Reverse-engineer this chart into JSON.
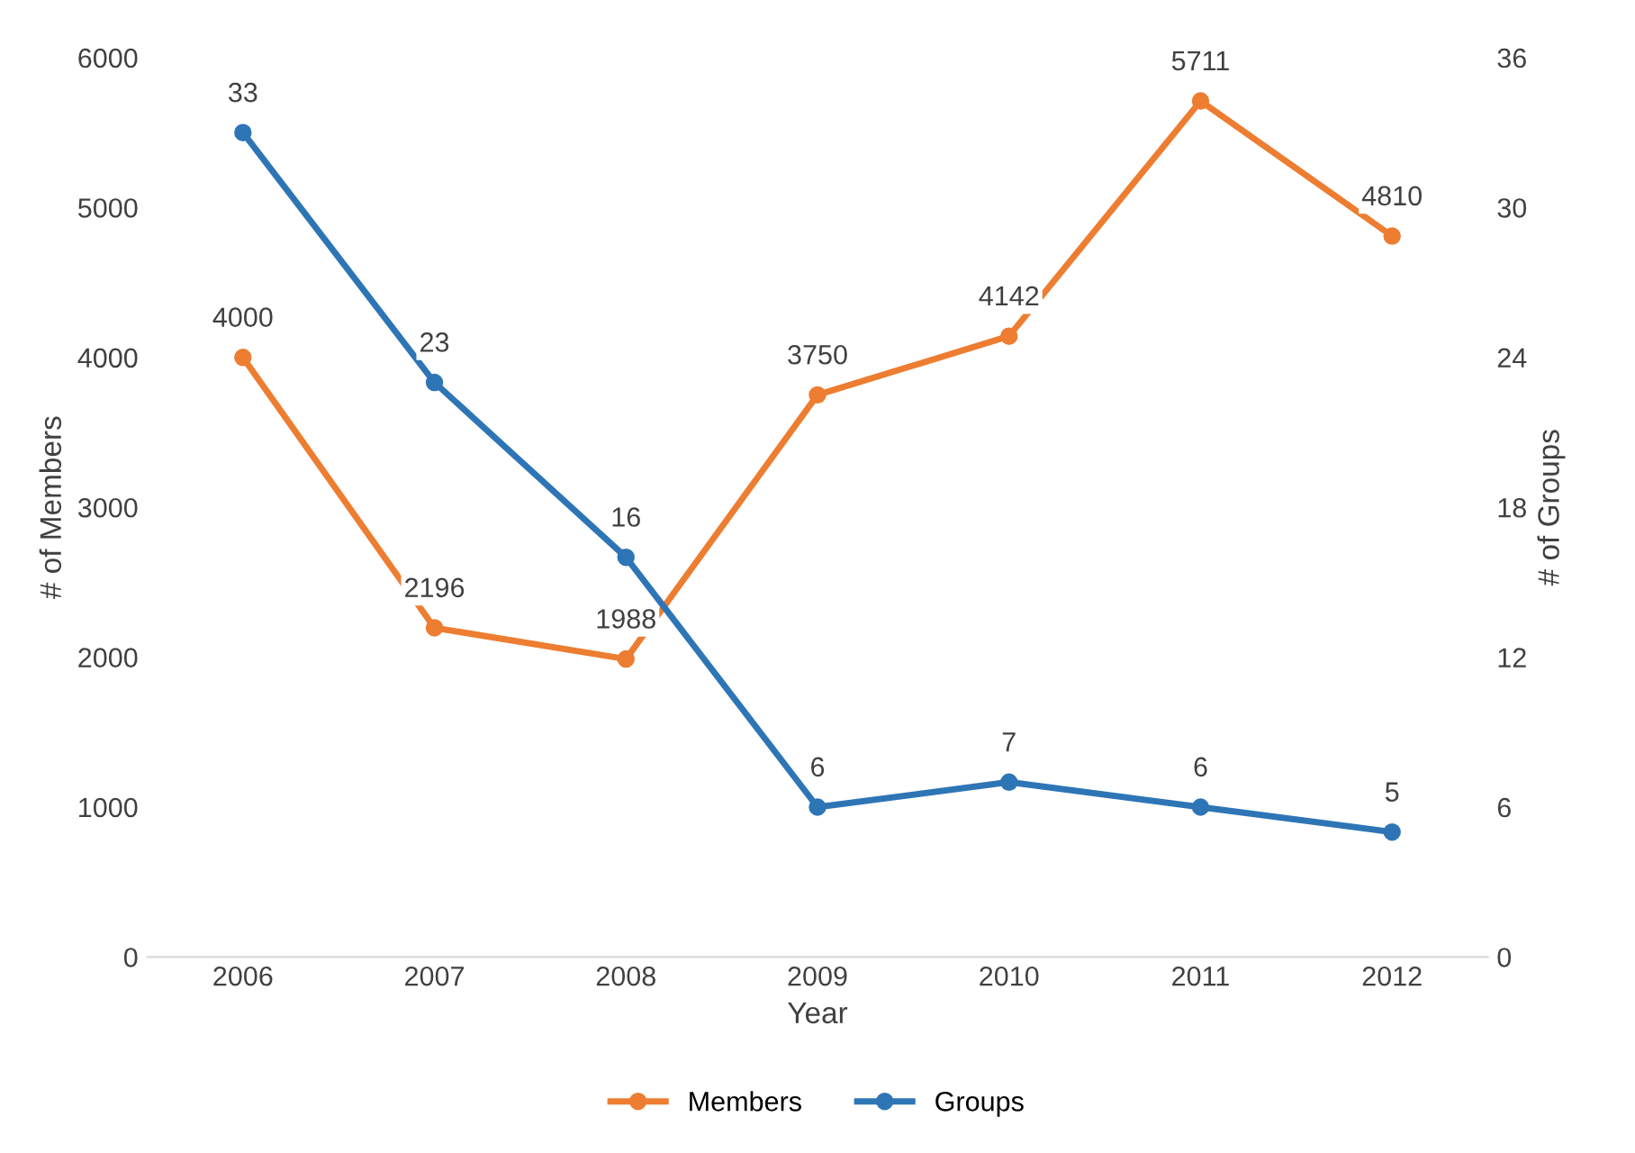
{
  "chart_data": {
    "type": "line",
    "xlabel": "Year",
    "ylabel": "# of Members",
    "y2label": "# of Groups",
    "categories": [
      "2006",
      "2007",
      "2008",
      "2009",
      "2010",
      "2011",
      "2012"
    ],
    "series": [
      {
        "name": "Members",
        "color": "#ed7d31",
        "values": [
          4000,
          2196,
          1988,
          3750,
          4142,
          5711,
          4810
        ]
      },
      {
        "name": "Groups",
        "color": "#2e75b6",
        "values": [
          33,
          23,
          16,
          6,
          7,
          6,
          5
        ],
        "axis": "y2"
      }
    ],
    "ylim": [
      0,
      6000
    ],
    "yticks": [
      0,
      1000,
      2000,
      3000,
      4000,
      5000,
      6000
    ],
    "y2lim": [
      0,
      36
    ],
    "y2ticks": [
      0,
      6,
      12,
      18,
      24,
      30,
      36
    ],
    "data_labels": true,
    "legend": "bottom",
    "marker": "circle",
    "line_style": "solid",
    "grid": false
  }
}
